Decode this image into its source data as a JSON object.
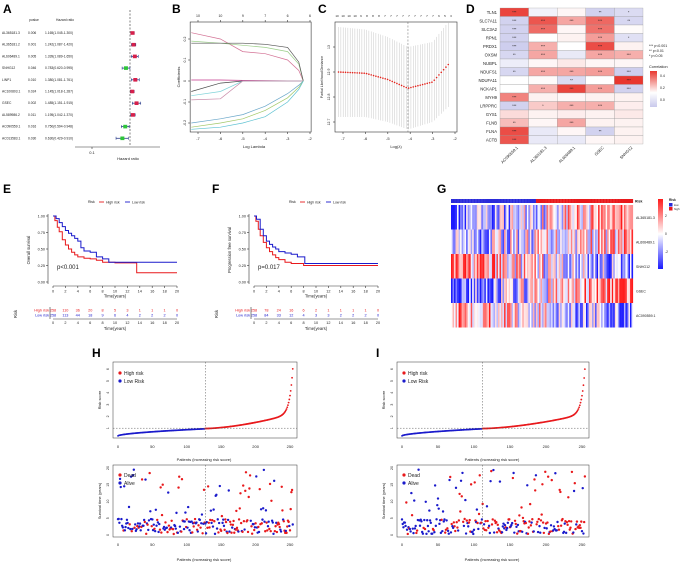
{
  "panel_labels": [
    "A",
    "B",
    "C",
    "D",
    "E",
    "F",
    "G",
    "H",
    "I"
  ],
  "chart_data": [
    {
      "type": "forest",
      "header": {
        "pvalue": "pvalue",
        "hr": "Hazard ratio"
      },
      "rows": [
        {
          "gene": "AL365181.3",
          "pvalue": "0.006",
          "hr_text": "1.165(1.045-1.300)",
          "hr": 1.165,
          "lo": 1.045,
          "hi": 1.3
        },
        {
          "gene": "AL365181.2",
          "pvalue": "0.001",
          "hr_text": "1.242(1.087-1.420)",
          "hr": 1.242,
          "lo": 1.087,
          "hi": 1.42
        },
        {
          "gene": "AL606489.1",
          "pvalue": "0.005",
          "hr_text": "1.339(1.089-1.650)",
          "hr": 1.339,
          "lo": 1.089,
          "hi": 1.65
        },
        {
          "gene": "SNHG12",
          "pvalue": "0.046",
          "hr_text": "0.783(0.620-0.995)",
          "hr": 0.783,
          "lo": 0.62,
          "hi": 0.995
        },
        {
          "gene": "LINP1",
          "pvalue": "0.010",
          "hr_text": "1.380(1.081-1.761)",
          "hr": 1.38,
          "lo": 1.081,
          "hi": 1.761
        },
        {
          "gene": "AC100803.1",
          "pvalue": "0.024",
          "hr_text": "1.145(1.018-1.287)",
          "hr": 1.145,
          "lo": 1.018,
          "hi": 1.287
        },
        {
          "gene": "GSEC",
          "pvalue": "0.002",
          "hr_text": "1.485(1.151-1.915)",
          "hr": 1.485,
          "lo": 1.151,
          "hi": 1.915
        },
        {
          "gene": "AL589986.2",
          "pvalue": "0.011",
          "hr_text": "1.195(1.042-1.370)",
          "hr": 1.195,
          "lo": 1.042,
          "hi": 1.37
        },
        {
          "gene": "AC090559.1",
          "pvalue": "0.016",
          "hr_text": "0.750(0.594-0.948)",
          "hr": 0.75,
          "lo": 0.594,
          "hi": 0.948
        },
        {
          "gene": "AC013583.1",
          "pvalue": "0.030",
          "hr_text": "0.630(0.429-0.910)",
          "hr": 0.63,
          "lo": 0.429,
          "hi": 0.91
        }
      ],
      "xlabel": "Hazard ratio",
      "xticks": [
        {
          "v": 0.1,
          "label": "0.1"
        }
      ],
      "reference": 1,
      "scale": "log",
      "colors": {
        "risk": "#d6204a",
        "protective": "#2ec43a",
        "ci": "#2c3e8c"
      }
    },
    {
      "type": "line",
      "xlabel": "Log Lambda",
      "ylabel": "Coefficients",
      "xticks": [
        -7,
        -6,
        -5,
        -4,
        -3,
        -2
      ],
      "yticks": [
        -0.2,
        -0.1,
        0.0,
        0.1,
        0.2
      ],
      "top_ticks": [
        "10",
        "10",
        "9",
        "7",
        "6",
        "6"
      ],
      "x": [
        -7.3,
        -6,
        -5,
        -4,
        -3,
        -2.5,
        -2.3
      ],
      "series": [
        {
          "color": "#d37295",
          "values": [
            0.23,
            0.2,
            0.14,
            0.13,
            0.1,
            0.05,
            0
          ]
        },
        {
          "color": "#9ccf8a",
          "values": [
            0.19,
            0.18,
            0.17,
            0.16,
            0.14,
            0.08,
            0
          ]
        },
        {
          "color": "#555555",
          "values": [
            0.18,
            0.18,
            0.18,
            0.175,
            0.16,
            0.09,
            0
          ]
        },
        {
          "color": "#c4368a",
          "values": [
            0.005,
            0.005,
            0.003,
            0.002,
            0.001,
            0,
            0
          ]
        },
        {
          "color": "#4a4a4a",
          "values": [
            -0.05,
            -0.01,
            0,
            0,
            0,
            0,
            0
          ]
        },
        {
          "color": "#7fd3d8",
          "values": [
            -0.07,
            -0.05,
            0,
            0,
            0,
            0,
            0
          ]
        },
        {
          "color": "#c98aa8",
          "values": [
            -0.09,
            -0.085,
            0,
            0,
            0,
            0,
            0
          ]
        },
        {
          "color": "#6aa7c9",
          "values": [
            -0.2,
            -0.18,
            -0.16,
            -0.12,
            -0.06,
            -0.02,
            0
          ]
        },
        {
          "color": "#a2c86a",
          "values": [
            -0.22,
            -0.2,
            -0.18,
            -0.14,
            -0.08,
            -0.03,
            0
          ]
        },
        {
          "color": "#5fc2d2",
          "values": [
            -0.23,
            -0.22,
            -0.2,
            -0.17,
            -0.1,
            -0.04,
            0
          ]
        }
      ]
    },
    {
      "type": "errorbar",
      "xlabel": "Log(λ)",
      "ylabel": "Partial Likelihood Deviance",
      "xticks": [
        -7,
        -6,
        -5,
        -4,
        -3,
        -2
      ],
      "yticks": [
        12.7,
        12.8,
        12.9,
        13.0
      ],
      "top_ticks": [
        "10",
        "10",
        "10",
        "10",
        "9",
        "8",
        "8",
        "8",
        "7",
        "7",
        "7",
        "7",
        "7",
        "7",
        "7",
        "7",
        "7",
        "6",
        "5",
        "3"
      ],
      "x": [
        -7.2,
        -6,
        -5,
        -4.1,
        -3,
        -2.3
      ],
      "mean": [
        12.9,
        12.895,
        12.87,
        12.835,
        12.86,
        12.93
      ],
      "sd": [
        0.18,
        0.175,
        0.17,
        0.165,
        0.16,
        0.17
      ],
      "lambda_min": -4.1,
      "color": "#e3231c"
    },
    {
      "type": "heatmap",
      "rows": [
        "TLN1",
        "SLC7A11",
        "SLC3A2",
        "RPN1",
        "PRDX1",
        "OXSM",
        "NUBPL",
        "NDUFS1",
        "NDUFA11",
        "NCKAP1",
        "MYH9",
        "LRPPRC",
        "GYS1",
        "FLNB",
        "FLNA",
        "ACTB"
      ],
      "columns": [
        "AC090559.1",
        "AL365181.3",
        "AL606489.1",
        "GSEC",
        "SNHG12"
      ],
      "values": [
        [
          0.42,
          -0.03,
          0.02,
          -0.1,
          -0.08
        ],
        [
          -0.1,
          0.38,
          0.2,
          0.34,
          -0.09
        ],
        [
          -0.1,
          0.33,
          0.02,
          0.32,
          0.01
        ],
        [
          -0.1,
          0.0,
          0.03,
          0.22,
          -0.07
        ],
        [
          -0.11,
          0.18,
          0.0,
          0.4,
          0.03
        ],
        [
          -0.09,
          0.2,
          -0.05,
          0.2,
          0.18
        ],
        [
          -0.04,
          0.02,
          0.05,
          0.02,
          0.02
        ],
        [
          -0.09,
          0.2,
          0.2,
          0.22,
          -0.11
        ],
        [
          0.0,
          0.01,
          -0.08,
          0.0,
          0.47
        ],
        [
          0.0,
          0.18,
          0.42,
          0.22,
          -0.1
        ],
        [
          0.28,
          0.03,
          0.02,
          0.03,
          0.03
        ],
        [
          -0.1,
          0.12,
          0.18,
          0.18,
          0.04
        ],
        [
          0.08,
          0.03,
          0.04,
          0.03,
          0.05
        ],
        [
          0.15,
          0.02,
          0.2,
          0.03,
          0.03
        ],
        [
          0.4,
          -0.05,
          0.02,
          -0.1,
          0.03
        ],
        [
          0.38,
          -0.05,
          -0.05,
          0.02,
          0.03
        ]
      ],
      "stars": [
        [
          "***",
          "",
          "",
          "**",
          "*"
        ],
        [
          "***",
          "***",
          "***",
          "***",
          "**"
        ],
        [
          "***",
          "***",
          "",
          "***",
          ""
        ],
        [
          "***",
          "",
          "",
          "***",
          "*"
        ],
        [
          "***",
          "***",
          "",
          "***",
          ""
        ],
        [
          "**",
          "***",
          "",
          "***",
          "***"
        ],
        [
          "",
          "",
          "",
          "",
          ""
        ],
        [
          "**",
          "***",
          "***",
          "***",
          "***"
        ],
        [
          "",
          "",
          "**",
          "",
          "***"
        ],
        [
          "",
          "***",
          "***",
          "***",
          "***"
        ],
        [
          "***",
          "",
          "",
          "",
          ""
        ],
        [
          "***",
          "*",
          "***",
          "***",
          ""
        ],
        [
          "",
          "",
          "",
          "",
          ""
        ],
        [
          "**",
          "",
          "***",
          "",
          ""
        ],
        [
          "***",
          "",
          "",
          "**",
          ""
        ],
        [
          "***",
          "",
          "",
          "",
          ""
        ]
      ],
      "significance_legend": [
        "*** p<0.001",
        "** p<0.01",
        "* p<0.05"
      ],
      "colorbar_title": "Correlation",
      "colorbar_ticks": [
        "0.4",
        "0.2",
        "0.0"
      ],
      "colors": {
        "high": "#e8372f",
        "mid": "#ffffff",
        "low": "#c9c9ec"
      }
    },
    {
      "type": "km",
      "legend_title": "Risk",
      "ylabel": "Overall survival",
      "xlabel": "Time(years)",
      "xticks": [
        0,
        2,
        4,
        6,
        8,
        10,
        12,
        14,
        16,
        18,
        20
      ],
      "yticks": [
        "0.00",
        "0.25",
        "0.50",
        "0.75",
        "1.00"
      ],
      "pvalue": "p<0.001",
      "series": [
        {
          "name": "High risk",
          "color": "#e8191c",
          "points": [
            [
              0,
              1
            ],
            [
              0.3,
              0.93
            ],
            [
              0.7,
              0.83
            ],
            [
              1,
              0.76
            ],
            [
              1.5,
              0.64
            ],
            [
              2,
              0.56
            ],
            [
              2.5,
              0.5
            ],
            [
              3,
              0.45
            ],
            [
              3.5,
              0.41
            ],
            [
              4,
              0.38
            ],
            [
              5,
              0.36
            ],
            [
              6,
              0.35
            ],
            [
              7,
              0.33
            ],
            [
              8,
              0.3
            ],
            [
              10,
              0.29
            ],
            [
              13.5,
              0.14
            ],
            [
              20,
              0.14
            ]
          ]
        },
        {
          "name": "Low risk",
          "color": "#1a1acb",
          "points": [
            [
              0,
              1
            ],
            [
              0.5,
              0.96
            ],
            [
              1,
              0.9
            ],
            [
              1.5,
              0.84
            ],
            [
              2,
              0.78
            ],
            [
              2.5,
              0.74
            ],
            [
              3,
              0.7
            ],
            [
              3.5,
              0.66
            ],
            [
              4,
              0.62
            ],
            [
              4.5,
              0.52
            ],
            [
              5,
              0.47
            ],
            [
              6,
              0.45
            ],
            [
              7,
              0.38
            ],
            [
              8,
              0.35
            ],
            [
              9,
              0.3
            ],
            [
              20,
              0.3
            ]
          ]
        }
      ],
      "risk_table": {
        "title": "Risk",
        "rows": [
          {
            "label": "High risk",
            "color": "#e8191c",
            "counts": [
              "258",
              "110",
              "36",
              "20",
              "8",
              "5",
              "3",
              "1",
              "1",
              "1",
              "0"
            ]
          },
          {
            "label": "Low risk",
            "color": "#1a1acb",
            "counts": [
              "258",
              "113",
              "44",
              "18",
              "9",
              "6",
              "4",
              "2",
              "2",
              "2",
              "0"
            ]
          }
        ]
      }
    },
    {
      "type": "km",
      "legend_title": "Risk",
      "ylabel": "Progression free survival",
      "xlabel": "Time(years)",
      "xticks": [
        0,
        2,
        4,
        6,
        8,
        10,
        12,
        14,
        16,
        18,
        20
      ],
      "yticks": [
        "0.00",
        "0.25",
        "0.50",
        "0.75",
        "1.00"
      ],
      "pvalue": "p=0.017",
      "series": [
        {
          "name": "High risk",
          "color": "#e8191c",
          "points": [
            [
              0,
              1
            ],
            [
              0.3,
              0.92
            ],
            [
              0.7,
              0.8
            ],
            [
              1,
              0.7
            ],
            [
              1.5,
              0.6
            ],
            [
              2,
              0.52
            ],
            [
              2.5,
              0.46
            ],
            [
              3,
              0.41
            ],
            [
              3.5,
              0.37
            ],
            [
              4,
              0.34
            ],
            [
              5,
              0.3
            ],
            [
              6,
              0.28
            ],
            [
              8,
              0.25
            ],
            [
              20,
              0.25
            ]
          ]
        },
        {
          "name": "Low risk",
          "color": "#1a1acb",
          "points": [
            [
              0,
              1
            ],
            [
              0.4,
              0.95
            ],
            [
              1,
              0.8
            ],
            [
              1.5,
              0.7
            ],
            [
              2,
              0.62
            ],
            [
              2.5,
              0.57
            ],
            [
              3,
              0.53
            ],
            [
              3.5,
              0.5
            ],
            [
              4,
              0.46
            ],
            [
              5,
              0.44
            ],
            [
              6,
              0.42
            ],
            [
              7,
              0.38
            ],
            [
              8.2,
              0.28
            ],
            [
              20,
              0.28
            ]
          ]
        }
      ],
      "risk_table": {
        "title": "Risk",
        "rows": [
          {
            "label": "High risk",
            "color": "#e8191c",
            "counts": [
              "258",
              "78",
              "24",
              "16",
              "6",
              "2",
              "1",
              "1",
              "1",
              "1",
              "0"
            ]
          },
          {
            "label": "Low risk",
            "color": "#1a1acb",
            "counts": [
              "258",
              "84",
              "33",
              "12",
              "4",
              "3",
              "3",
              "2",
              "2",
              "2",
              "0"
            ]
          }
        ]
      }
    },
    {
      "type": "heatmap",
      "rows": [
        "AL365181.3",
        "AL606489.1",
        "SNHG12",
        "GSEC",
        "AC090559.1"
      ],
      "row_trend": [
        1,
        0.5,
        -0.8,
        1,
        -0.9
      ],
      "annotation_label": "Risk",
      "annotation_legend": {
        "title": "Risk",
        "levels": [
          "low",
          "high"
        ]
      },
      "low_fraction": 0.47,
      "colorbar_ticks": [
        "2",
        "0",
        "-2"
      ],
      "colors": {
        "high": "#ff1a1a",
        "mid": "#ffffff",
        "low": "#1a1aff",
        "annot_low": "#2b2bd9",
        "annot_high": "#e8191c"
      }
    },
    {
      "type": "scatter",
      "n_patients": 255,
      "cutoff_patient": 127,
      "risk": {
        "ylabel": "Risk score",
        "xlabel": "Patients (increasing risk score)",
        "xticks": [
          0,
          50,
          100,
          150,
          200,
          250
        ],
        "yticks": [
          1,
          2,
          3,
          4,
          5,
          6
        ],
        "cutoff_score": 1,
        "max_score": 6,
        "legend": [
          "High risk",
          "Low Risk"
        ]
      },
      "survival": {
        "ylabel": "Survival time (years)",
        "xlabel": "Patients (increasing risk score)",
        "xticks": [
          0,
          50,
          100,
          150,
          200,
          250
        ],
        "yticks": [
          0,
          5,
          10,
          15,
          20
        ],
        "legend": [
          "Dead",
          "Alive"
        ]
      },
      "colors": {
        "high": "#e8191c",
        "low": "#1a1acb"
      }
    },
    {
      "type": "scatter",
      "n_patients": 255,
      "cutoff_patient": 112,
      "risk": {
        "ylabel": "Risk score",
        "xlabel": "Patients (increasing risk score)",
        "xticks": [
          0,
          50,
          100,
          150,
          200,
          250
        ],
        "yticks": [
          1,
          2,
          3,
          4,
          5,
          6
        ],
        "cutoff_score": 1,
        "max_score": 6,
        "legend": [
          "High risk",
          "Low Risk"
        ]
      },
      "survival": {
        "ylabel": "Survival time (years)",
        "xlabel": "Patients (increasing risk score)",
        "xticks": [
          0,
          50,
          100,
          150,
          200,
          250
        ],
        "yticks": [
          0,
          5,
          10,
          15,
          20
        ],
        "legend": [
          "Dead",
          "Alive"
        ]
      },
      "colors": {
        "high": "#e8191c",
        "low": "#1a1acb"
      }
    }
  ]
}
